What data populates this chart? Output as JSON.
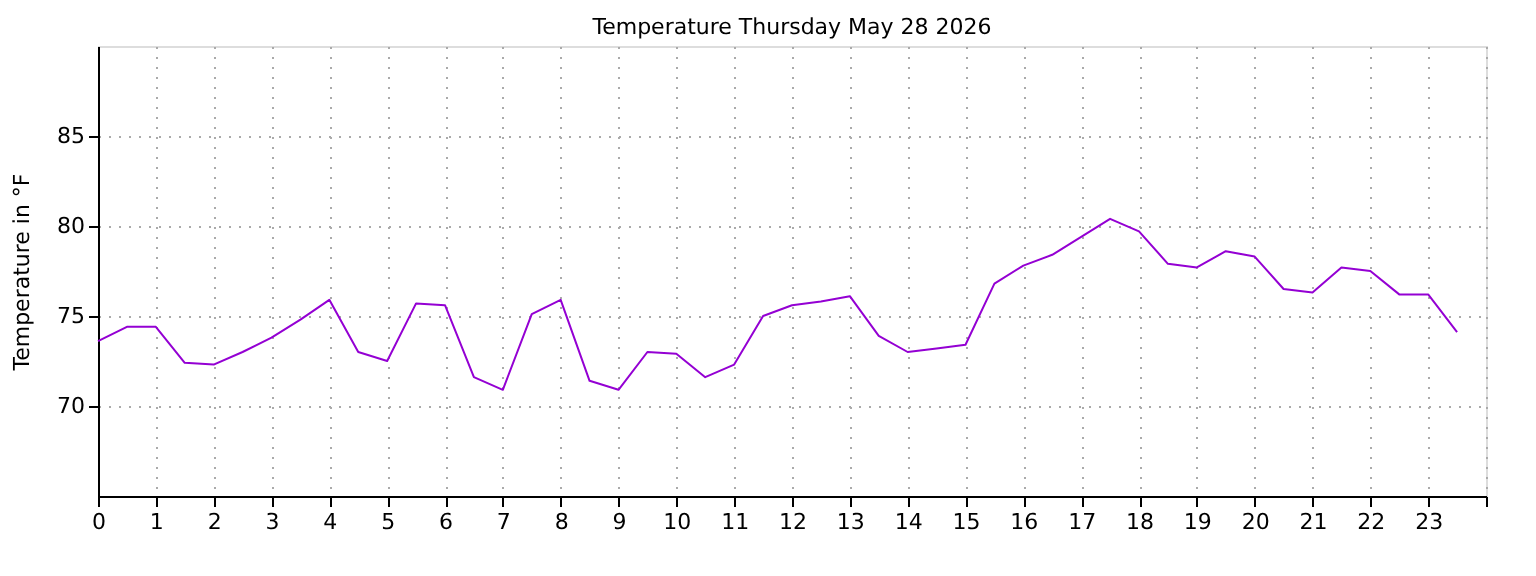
{
  "chart_data": {
    "type": "line",
    "title": "Temperature Thursday May 28 2026",
    "ylabel": "Temperature in °F",
    "x": [
      0,
      0.5,
      1,
      1.5,
      2,
      2.5,
      3,
      3.5,
      4,
      4.5,
      5,
      5.5,
      6,
      6.5,
      7,
      7.5,
      8,
      8.5,
      9,
      9.5,
      10,
      10.5,
      11,
      11.5,
      12,
      12.5,
      13,
      13.5,
      14,
      14.5,
      15,
      15.5,
      16,
      16.5,
      17,
      17.5,
      18,
      18.5,
      19,
      19.5,
      20,
      20.5,
      21,
      21.5,
      22,
      22.5,
      23,
      23.5
    ],
    "series": [
      {
        "color": "#9400d3",
        "values": [
          73.6,
          74.4,
          74.4,
          72.4,
          72.3,
          73.0,
          73.8,
          74.8,
          75.9,
          73.0,
          72.5,
          75.7,
          75.6,
          71.6,
          70.9,
          75.1,
          75.9,
          71.4,
          70.9,
          73.0,
          72.9,
          71.6,
          72.3,
          75.0,
          75.6,
          75.8,
          76.1,
          73.9,
          73.0,
          73.2,
          73.4,
          76.8,
          77.8,
          78.4,
          79.4,
          80.4,
          79.7,
          77.9,
          77.7,
          78.6,
          78.3,
          76.5,
          76.3,
          77.7,
          77.5,
          76.2,
          76.2,
          74.1
        ]
      }
    ],
    "xlim": [
      0,
      24
    ],
    "xticks": [
      0,
      1,
      2,
      3,
      4,
      5,
      6,
      7,
      8,
      9,
      10,
      11,
      12,
      13,
      14,
      15,
      16,
      17,
      18,
      19,
      20,
      21,
      22,
      23,
      {
        "value": 24,
        "label": null
      }
    ],
    "ylim": [
      65,
      90
    ],
    "yticks": [
      70,
      75,
      80,
      85
    ],
    "grid": true,
    "legend": false,
    "marker": "none",
    "line_style": "solid"
  }
}
